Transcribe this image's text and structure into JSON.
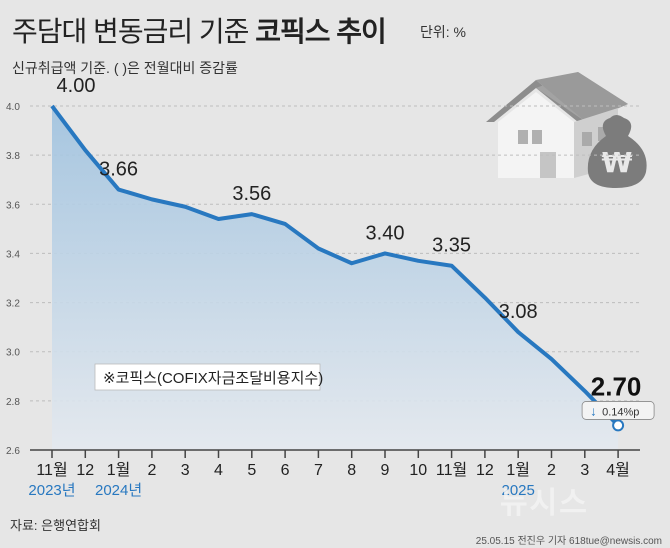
{
  "header": {
    "title_regular": "주담대 변동금리 기준",
    "title_bold": "코픽스 추이",
    "unit": "단위: %",
    "subtitle": "신규취급액 기준. ( )은 전월대비 증감률"
  },
  "footer": {
    "source": "자료: 은행연합회",
    "credit": "25.05.15 전진우 기자 618tue@newsis.com",
    "watermark": "뉴시스"
  },
  "colors": {
    "line": "#2878c0",
    "area_top": "#9fc2df",
    "area_bottom": "#e4e9ef",
    "background": "#e6e6e6",
    "year_label": "#2878c0",
    "down_arrow": "#2878c0"
  },
  "chart_data": {
    "type": "area",
    "legend": "※코픽스(COFIX자금조달비용지수)",
    "x": [
      "11월",
      "12",
      "1월",
      "2",
      "3",
      "4",
      "5",
      "6",
      "7",
      "8",
      "9",
      "10",
      "11월",
      "12",
      "1월",
      "2",
      "3",
      "4월"
    ],
    "values": [
      4.0,
      3.82,
      3.66,
      3.62,
      3.59,
      3.54,
      3.56,
      3.52,
      3.42,
      3.36,
      3.4,
      3.37,
      3.35,
      3.22,
      3.08,
      2.97,
      2.84,
      2.7
    ],
    "data_labels": [
      {
        "index": 0,
        "text": "4.00"
      },
      {
        "index": 2,
        "text": "3.66"
      },
      {
        "index": 6,
        "text": "3.56"
      },
      {
        "index": 10,
        "text": "3.40"
      },
      {
        "index": 12,
        "text": "3.35"
      },
      {
        "index": 14,
        "text": "3.08"
      }
    ],
    "last_label": {
      "value": "2.70",
      "change": "0.14%p",
      "direction": "down"
    },
    "year_labels": [
      {
        "index": 0,
        "text": "2023년"
      },
      {
        "index": 2,
        "text": "2024년"
      },
      {
        "index": 14,
        "text": "2025"
      }
    ],
    "ylim": [
      2.6,
      4.0
    ],
    "yticks": [
      "4.0",
      "3.8",
      "3.6",
      "3.4",
      "3.2",
      "3.0",
      "2.8",
      "2.6"
    ],
    "grid": true
  }
}
